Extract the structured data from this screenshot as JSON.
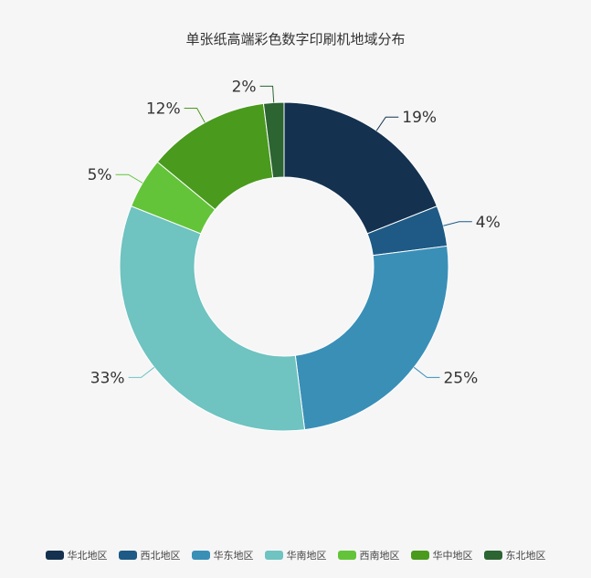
{
  "chart_data": {
    "type": "pie",
    "subtype": "donut",
    "title": "单张纸高端彩色数字印刷机地域分布",
    "categories": [
      "华北地区",
      "西北地区",
      "华东地区",
      "华南地区",
      "西南地区",
      "华中地区",
      "东北地区"
    ],
    "values": [
      19,
      4,
      25,
      33,
      5,
      12,
      2
    ],
    "labels": [
      "19%",
      "4%",
      "25%",
      "33%",
      "5%",
      "12%",
      "2%"
    ],
    "colors": [
      "#14324f",
      "#1e5a85",
      "#3a8fb7",
      "#6fc3c0",
      "#63c43a",
      "#4a9a1e",
      "#2c6432"
    ],
    "start": "top",
    "direction": "clockwise",
    "legend_position": "bottom"
  }
}
